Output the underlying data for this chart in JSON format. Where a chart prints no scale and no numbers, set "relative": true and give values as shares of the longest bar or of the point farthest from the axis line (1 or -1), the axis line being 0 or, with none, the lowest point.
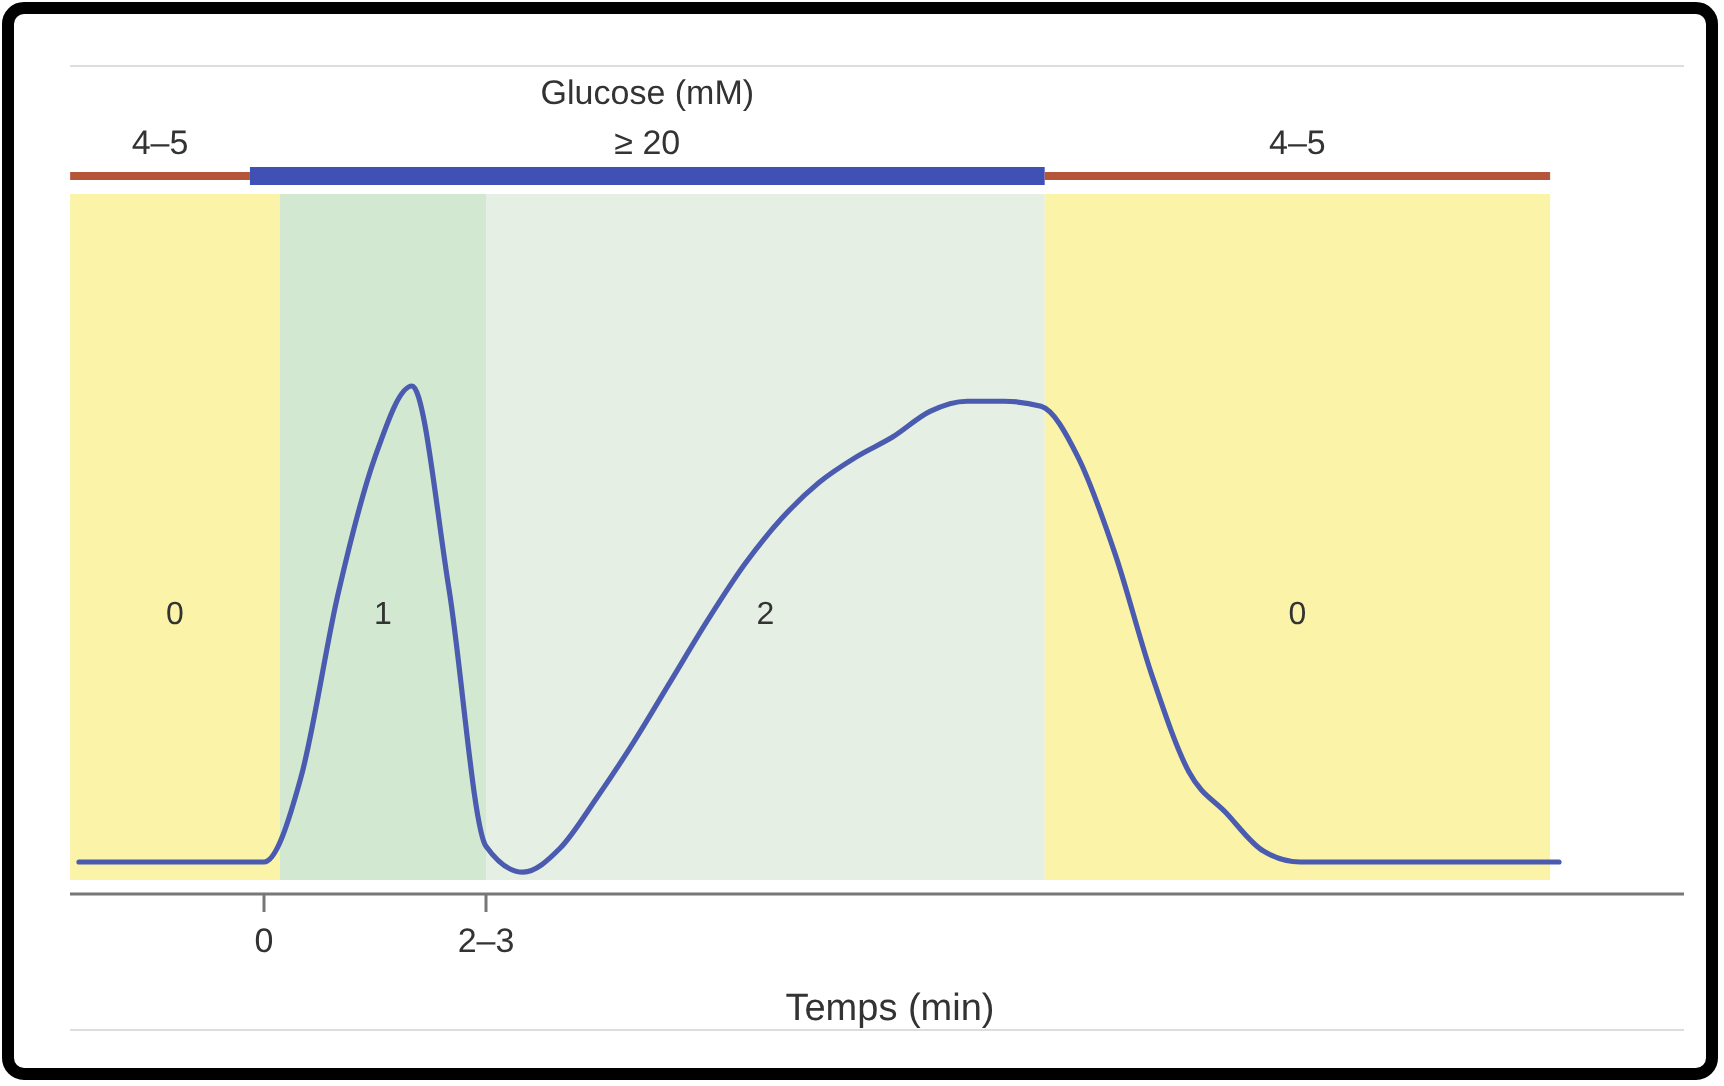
{
  "chart_data": {
    "type": "line",
    "relative": true,
    "xlabel": "Temps (min)",
    "grid": false,
    "marker": "none",
    "line_style": "solid",
    "categories": [
      null,
      null,
      null,
      null,
      null,
      "0",
      null,
      null,
      null,
      null,
      null,
      "2–3",
      null,
      null,
      null,
      null,
      null,
      null,
      null,
      null,
      null,
      null,
      null,
      null,
      null,
      null,
      null,
      null,
      null,
      null,
      null,
      null,
      null,
      null,
      null,
      null,
      null,
      null,
      null,
      null,
      null
    ],
    "series": [
      {
        "color": "#4a5bb0",
        "values": [
          0.063,
          0.063,
          0.063,
          0.063,
          0.063,
          0.063,
          0.23,
          0.59,
          0.86,
          1.0,
          0.6,
          0.094,
          0.043,
          0.09,
          0.19,
          0.3,
          0.42,
          0.54,
          0.65,
          0.74,
          0.81,
          0.86,
          0.9,
          0.95,
          0.97,
          0.97,
          0.96,
          0.86,
          0.67,
          0.43,
          0.24,
          0.16,
          0.085,
          0.063,
          0.063,
          0.063,
          0.063,
          0.063,
          0.063,
          0.063,
          0.063
        ]
      }
    ],
    "annotations": [
      "Glucose (mM)",
      "4–5",
      "≥ 20",
      "4–5",
      "0",
      "1",
      "2",
      "0"
    ]
  }
}
